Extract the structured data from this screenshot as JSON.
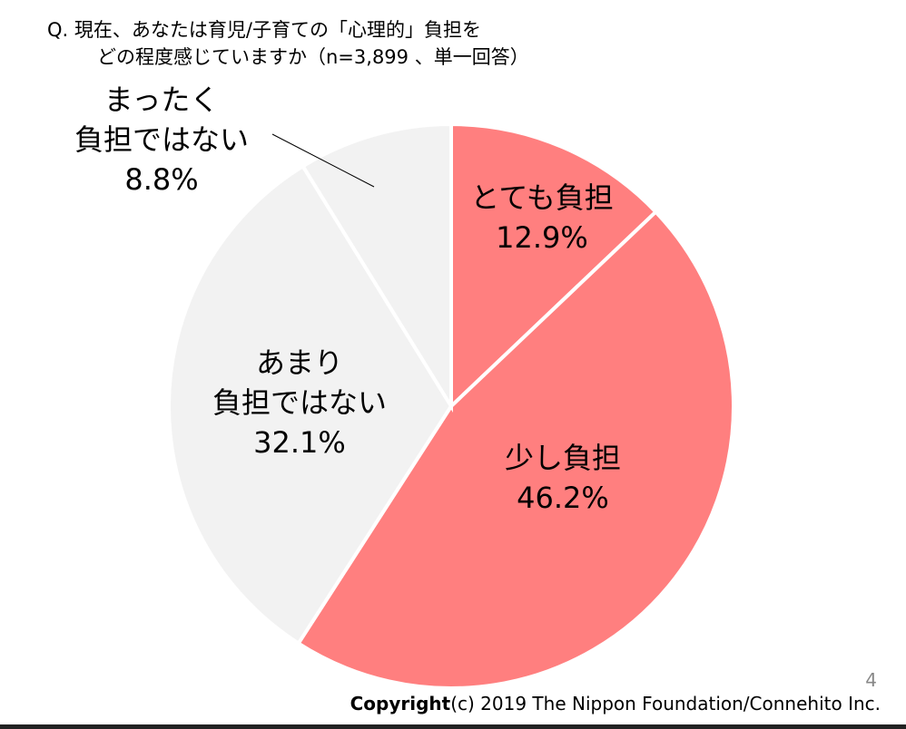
{
  "header": {
    "line1": "Q.  現在、あなたは育児/子育ての「心理的」負担を",
    "line2": "どの程度感じていますか（n=3,899 、単一回答）"
  },
  "chart_data": {
    "type": "pie",
    "title": "現在、あなたは育児/子育ての「心理的」負担をどの程度感じていますか（n=3,899 、単一回答）",
    "start": "top",
    "direction": "clockwise",
    "slices": [
      {
        "label": "とても負担",
        "value": 12.9,
        "display": "12.9%",
        "color": "#FF7F7F"
      },
      {
        "label": "少し負担",
        "value": 46.2,
        "display": "46.2%",
        "color": "#FF7F7F"
      },
      {
        "label": "あまり負担ではない",
        "label_lines": [
          "あまり",
          "負担ではない"
        ],
        "value": 32.1,
        "display": "32.1%",
        "color": "#F2F2F2"
      },
      {
        "label": "まったく負担ではない",
        "label_lines": [
          "まったく",
          "負担ではない"
        ],
        "value": 8.8,
        "display": "8.8%",
        "color": "#F2F2F2"
      }
    ]
  },
  "footer": {
    "copyright_bold": "Copyright",
    "copyright_rest": "(c) 2019 The Nippon Foundation/Connehito Inc.",
    "page_number": "4"
  }
}
